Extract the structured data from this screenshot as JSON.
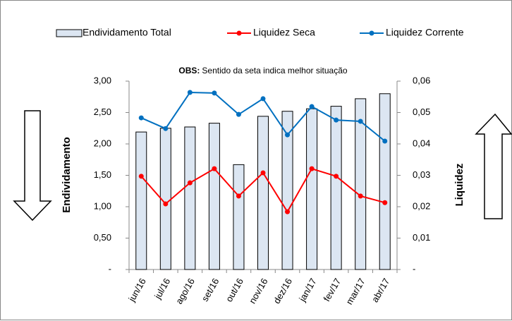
{
  "chart_data": {
    "type": "bar",
    "annotation": {
      "bold": "OBS:",
      "text": "Sentido da seta indica melhor situação"
    },
    "ylabel": "Endividamento",
    "y2label": "Liquidez",
    "categories": [
      "jun/16",
      "jul/16",
      "ago/16",
      "set/16",
      "out/16",
      "nov/16",
      "dez/16",
      "jan/17",
      "fev/17",
      "mar/17",
      "abr/17"
    ],
    "series": [
      {
        "name": "Endividamento Total",
        "type": "bar",
        "color": "#dce6f2",
        "values": [
          2.19,
          2.25,
          2.27,
          2.33,
          1.67,
          2.44,
          2.52,
          2.56,
          2.6,
          2.72,
          2.8
        ]
      },
      {
        "name": "Liquidez Seca",
        "type": "line",
        "axis": "y2",
        "color": "#ff0000",
        "values": [
          0.0297,
          0.0209,
          0.0276,
          0.0321,
          0.0234,
          0.0308,
          0.0184,
          0.0321,
          0.0297,
          0.0234,
          0.0213
        ]
      },
      {
        "name": "Liquidez Corrente",
        "type": "line",
        "axis": "y2",
        "color": "#0070c0",
        "values": [
          0.0483,
          0.0449,
          0.0564,
          0.0562,
          0.0494,
          0.0544,
          0.0429,
          0.0519,
          0.0476,
          0.0472,
          0.0409
        ]
      }
    ],
    "ylim": [
      0,
      3
    ],
    "yticks": [
      {
        "value": 0,
        "label": "-"
      },
      {
        "value": 0.5,
        "label": "0,50"
      },
      {
        "value": 1,
        "label": "1,00"
      },
      {
        "value": 1.5,
        "label": "1,50"
      },
      {
        "value": 2,
        "label": "2,00"
      },
      {
        "value": 2.5,
        "label": "2,50"
      },
      {
        "value": 3,
        "label": "3,00"
      }
    ],
    "y2lim": [
      0,
      0.06
    ],
    "y2ticks": [
      {
        "value": 0,
        "label": "-"
      },
      {
        "value": 0.01,
        "label": "0,01"
      },
      {
        "value": 0.02,
        "label": "0,02"
      },
      {
        "value": 0.03,
        "label": "0,03"
      },
      {
        "value": 0.04,
        "label": "0,04"
      },
      {
        "value": 0.05,
        "label": "0,05"
      },
      {
        "value": 0.06,
        "label": "0,06"
      }
    ],
    "grid": false
  }
}
